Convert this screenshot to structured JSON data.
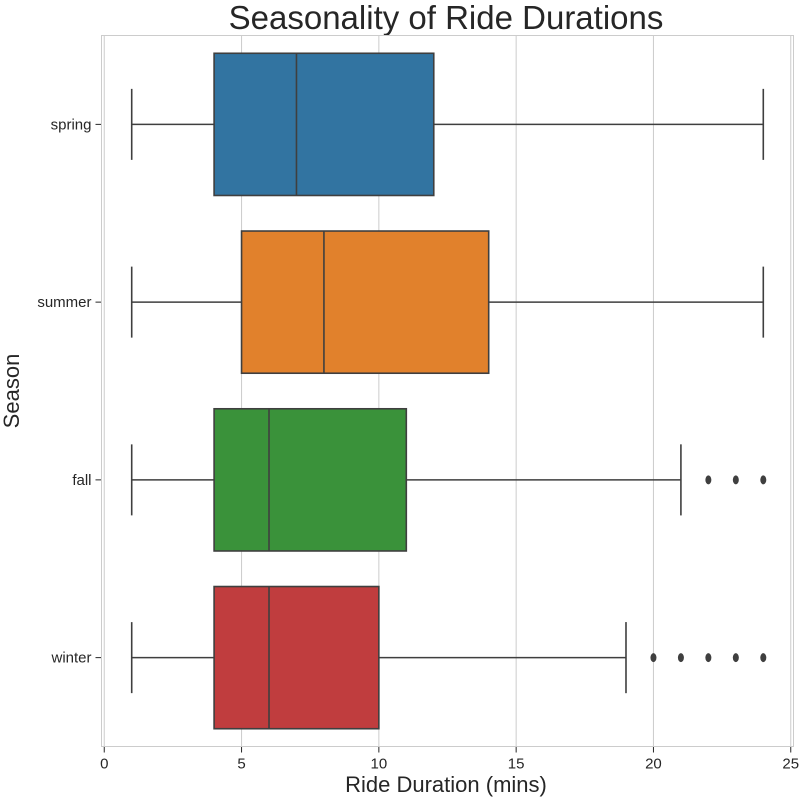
{
  "chart_data": {
    "type": "boxplot",
    "orientation": "horizontal",
    "title": "Seasonality of Ride Durations",
    "xlabel": "Ride Duration (mins)",
    "ylabel": "Season",
    "xlim": [
      -0.1,
      25.1
    ],
    "xticks": [
      0,
      5,
      10,
      15,
      20,
      25
    ],
    "grid": "vertical",
    "categories": [
      "spring",
      "summer",
      "fall",
      "winter"
    ],
    "series": [
      {
        "label": "spring",
        "color": "#3274a1",
        "whisker_low": 1,
        "q1": 4,
        "median": 7,
        "q3": 12,
        "whisker_high": 24,
        "outliers": []
      },
      {
        "label": "summer",
        "color": "#e1812c",
        "whisker_low": 1,
        "q1": 5,
        "median": 8,
        "q3": 14,
        "whisker_high": 24,
        "outliers": []
      },
      {
        "label": "fall",
        "color": "#3a923a",
        "whisker_low": 1,
        "q1": 4,
        "median": 6,
        "q3": 11,
        "whisker_high": 21,
        "outliers": [
          22,
          23,
          24
        ]
      },
      {
        "label": "winter",
        "color": "#c03d3e",
        "whisker_low": 1,
        "q1": 4,
        "median": 6,
        "q3": 10,
        "whisker_high": 19,
        "outliers": [
          20,
          21,
          22,
          23,
          24
        ]
      }
    ]
  }
}
